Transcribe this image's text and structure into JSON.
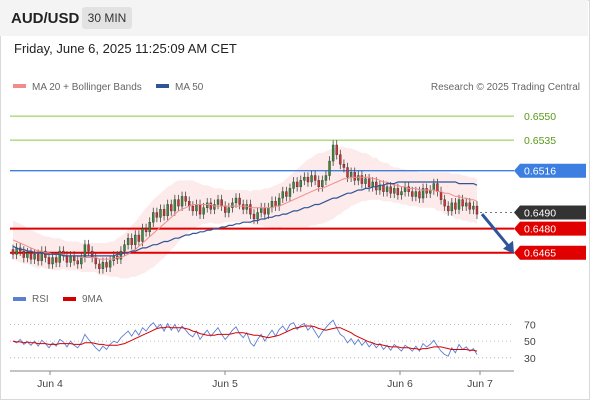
{
  "header": {
    "symbol": "AUD/USD",
    "timeframe": "30 MIN",
    "datetime": "Friday, June 6, 2025 11:25:09 AM CET"
  },
  "legend": {
    "bollinger": "MA 20 + Bollinger Bands",
    "ma50": "MA 50",
    "credit": "Research © 2025 Trading Central",
    "rsi": "RSI",
    "rsi_ma": "9MA"
  },
  "colors": {
    "bollinger": "#f28b8b",
    "ma50": "#2f5597",
    "green_level": "#8dc63f",
    "blue_level": "#3d7fe0",
    "red_level": "#e00000",
    "rsi": "#5b7fd4",
    "rsi_ma": "#d40000",
    "candle_up": "#3a8a3a",
    "candle_down": "#d33030"
  },
  "chart_data": [
    {
      "type": "candlestick",
      "ylim": [
        0.6453,
        0.656
      ],
      "x_ticks": [
        "Jun 4",
        "Jun 5",
        "Jun 6",
        "Jun 7"
      ],
      "levels": [
        {
          "value": 0.655,
          "label": "0.6550",
          "style": "green"
        },
        {
          "value": 0.6535,
          "label": "0.6535",
          "style": "green"
        },
        {
          "value": 0.6516,
          "label": "0.6516",
          "style": "blue"
        },
        {
          "value": 0.649,
          "label": "0.6490",
          "style": "dark"
        },
        {
          "value": 0.648,
          "label": "0.6480",
          "style": "red"
        },
        {
          "value": 0.6465,
          "label": "0.6465",
          "style": "red"
        }
      ],
      "close": [
        0.6464,
        0.6468,
        0.6466,
        0.6462,
        0.6465,
        0.6461,
        0.6464,
        0.646,
        0.6466,
        0.6462,
        0.6458,
        0.6462,
        0.6459,
        0.6466,
        0.6463,
        0.6459,
        0.6463,
        0.646,
        0.6458,
        0.6462,
        0.647,
        0.6466,
        0.6462,
        0.6458,
        0.6455,
        0.6459,
        0.6456,
        0.646,
        0.6463,
        0.6461,
        0.6466,
        0.647,
        0.6474,
        0.647,
        0.6476,
        0.6472,
        0.648,
        0.6478,
        0.6484,
        0.649,
        0.6487,
        0.6492,
        0.6488,
        0.6495,
        0.6491,
        0.6498,
        0.6494,
        0.65,
        0.6497,
        0.6494,
        0.6491,
        0.6495,
        0.6489,
        0.6493,
        0.6496,
        0.6492,
        0.6495,
        0.6498,
        0.6494,
        0.649,
        0.6493,
        0.6496,
        0.6499,
        0.6495,
        0.6492,
        0.6495,
        0.6489,
        0.6486,
        0.649,
        0.6493,
        0.6489,
        0.6493,
        0.6497,
        0.6494,
        0.6499,
        0.6503,
        0.65,
        0.6505,
        0.6509,
        0.6506,
        0.651,
        0.6512,
        0.6509,
        0.6513,
        0.651,
        0.6506,
        0.651,
        0.6513,
        0.6522,
        0.6532,
        0.6526,
        0.652,
        0.6518,
        0.6512,
        0.6515,
        0.651,
        0.6513,
        0.6508,
        0.6511,
        0.6506,
        0.6509,
        0.6504,
        0.6507,
        0.6503,
        0.6506,
        0.6502,
        0.6505,
        0.6501,
        0.6503,
        0.6506,
        0.6503,
        0.65,
        0.6503,
        0.6499,
        0.6505,
        0.6502,
        0.6504,
        0.6508,
        0.6503,
        0.6498,
        0.6494,
        0.6491,
        0.6496,
        0.6492,
        0.6498,
        0.6494,
        0.6496,
        0.6492,
        0.6494,
        0.6489
      ],
      "ma20": [
        0.6473,
        0.6472,
        0.6471,
        0.647,
        0.6469,
        0.6468,
        0.6467,
        0.6466,
        0.6466,
        0.6465,
        0.6465,
        0.6464,
        0.6464,
        0.6464,
        0.6464,
        0.6463,
        0.6463,
        0.6463,
        0.6463,
        0.6462,
        0.6462,
        0.6462,
        0.6462,
        0.6462,
        0.6461,
        0.6461,
        0.6461,
        0.6461,
        0.6461,
        0.6462,
        0.6462,
        0.6463,
        0.6464,
        0.6466,
        0.6467,
        0.6469,
        0.6471,
        0.6473,
        0.6475,
        0.6477,
        0.6479,
        0.6481,
        0.6483,
        0.6485,
        0.6487,
        0.6489,
        0.6491,
        0.6492,
        0.6493,
        0.6494,
        0.6495,
        0.6495,
        0.6495,
        0.6495,
        0.6495,
        0.6495,
        0.6494,
        0.6494,
        0.6494,
        0.6494,
        0.6494,
        0.6494,
        0.6494,
        0.6494,
        0.6494,
        0.6494,
        0.6493,
        0.6493,
        0.6493,
        0.6493,
        0.6493,
        0.6493,
        0.6493,
        0.6494,
        0.6494,
        0.6495,
        0.6496,
        0.6497,
        0.6498,
        0.6499,
        0.65,
        0.6501,
        0.6502,
        0.6503,
        0.6504,
        0.6505,
        0.6505,
        0.6506,
        0.6507,
        0.6508,
        0.6509,
        0.651,
        0.6511,
        0.6511,
        0.6512,
        0.6512,
        0.6512,
        0.6512,
        0.6512,
        0.6512,
        0.6511,
        0.6511,
        0.651,
        0.6509,
        0.6509,
        0.6508,
        0.6507,
        0.6507,
        0.6506,
        0.6506,
        0.6505,
        0.6505,
        0.6505,
        0.6504,
        0.6504,
        0.6504,
        0.6504,
        0.6504,
        0.6503,
        0.6503,
        0.6502,
        0.6502,
        0.6501,
        0.65,
        0.65,
        0.6499,
        0.6499,
        0.6498,
        0.6498,
        0.6497
      ],
      "ma50": [
        0.6469,
        0.6468,
        0.6467,
        0.6467,
        0.6466,
        0.6466,
        0.6465,
        0.6465,
        0.6465,
        0.6464,
        0.6464,
        0.6464,
        0.6464,
        0.6464,
        0.6463,
        0.6463,
        0.6463,
        0.6463,
        0.6463,
        0.6463,
        0.6463,
        0.6463,
        0.6463,
        0.6463,
        0.6463,
        0.6463,
        0.6463,
        0.6463,
        0.6463,
        0.6464,
        0.6464,
        0.6465,
        0.6465,
        0.6466,
        0.6466,
        0.6467,
        0.6468,
        0.6468,
        0.6469,
        0.647,
        0.647,
        0.6471,
        0.6472,
        0.6472,
        0.6473,
        0.6474,
        0.6474,
        0.6475,
        0.6476,
        0.6476,
        0.6477,
        0.6477,
        0.6478,
        0.6478,
        0.6479,
        0.6479,
        0.648,
        0.648,
        0.6481,
        0.6481,
        0.6482,
        0.6482,
        0.6483,
        0.6483,
        0.6484,
        0.6484,
        0.6484,
        0.6485,
        0.6485,
        0.6486,
        0.6486,
        0.6487,
        0.6487,
        0.6488,
        0.6488,
        0.6489,
        0.6489,
        0.649,
        0.6491,
        0.6491,
        0.6492,
        0.6493,
        0.6493,
        0.6494,
        0.6495,
        0.6495,
        0.6496,
        0.6497,
        0.6498,
        0.6499,
        0.6499,
        0.65,
        0.6501,
        0.6502,
        0.6502,
        0.6503,
        0.6504,
        0.6504,
        0.6505,
        0.6505,
        0.6506,
        0.6506,
        0.6507,
        0.6507,
        0.6508,
        0.6508,
        0.6508,
        0.6509,
        0.6509,
        0.6509,
        0.6509,
        0.6509,
        0.6509,
        0.6509,
        0.6509,
        0.6509,
        0.6509,
        0.6509,
        0.6509,
        0.6509,
        0.6509,
        0.6509,
        0.6509,
        0.6509,
        0.6508,
        0.6508,
        0.6508,
        0.6508,
        0.6508,
        0.6507
      ],
      "bb_width": [
        0.0012,
        0.0012,
        0.0012,
        0.0012,
        0.0011,
        0.0011,
        0.0011,
        0.0011,
        0.001,
        0.001,
        0.001,
        0.001,
        0.001,
        0.001,
        0.0009,
        0.0009,
        0.0009,
        0.0009,
        0.0009,
        0.0009,
        0.0009,
        0.0009,
        0.0009,
        0.0009,
        0.001,
        0.001,
        0.001,
        0.0011,
        0.0011,
        0.0012,
        0.0013,
        0.0014,
        0.0015,
        0.0016,
        0.0017,
        0.0018,
        0.0019,
        0.002,
        0.002,
        0.0021,
        0.0021,
        0.0021,
        0.0021,
        0.0021,
        0.002,
        0.002,
        0.0019,
        0.0018,
        0.0017,
        0.0016,
        0.0015,
        0.0014,
        0.0013,
        0.0012,
        0.0012,
        0.0011,
        0.0011,
        0.0011,
        0.0011,
        0.001,
        0.001,
        0.001,
        0.001,
        0.001,
        0.001,
        0.001,
        0.001,
        0.0011,
        0.0011,
        0.0011,
        0.0012,
        0.0012,
        0.0013,
        0.0013,
        0.0014,
        0.0014,
        0.0015,
        0.0016,
        0.0017,
        0.0018,
        0.0019,
        0.002,
        0.0021,
        0.0021,
        0.0022,
        0.0022,
        0.0022,
        0.0022,
        0.0022,
        0.0022,
        0.0021,
        0.0021,
        0.002,
        0.0019,
        0.0018,
        0.0017,
        0.0016,
        0.0015,
        0.0015,
        0.0014,
        0.0013,
        0.0013,
        0.0012,
        0.0012,
        0.0012,
        0.0011,
        0.0011,
        0.0011,
        0.0011,
        0.0011,
        0.0011,
        0.0011,
        0.0011,
        0.0011,
        0.0011,
        0.0011,
        0.0011,
        0.0011,
        0.0012,
        0.0012,
        0.0013,
        0.0013,
        0.0013,
        0.0014,
        0.0014,
        0.0014,
        0.0014,
        0.0014,
        0.0014,
        0.0014
      ],
      "projection": {
        "from": 0.6489,
        "to": 0.6465
      }
    },
    {
      "type": "line",
      "ylim": [
        25,
        80
      ],
      "y_ticks": [
        70,
        50,
        30
      ],
      "series": [
        {
          "name": "RSI",
          "values": [
            50,
            48,
            52,
            46,
            49,
            45,
            50,
            44,
            51,
            47,
            42,
            48,
            44,
            52,
            49,
            43,
            50,
            45,
            42,
            48,
            58,
            52,
            47,
            42,
            38,
            44,
            40,
            46,
            50,
            48,
            54,
            58,
            62,
            56,
            63,
            57,
            66,
            62,
            68,
            72,
            66,
            70,
            62,
            71,
            63,
            70,
            61,
            68,
            63,
            58,
            55,
            62,
            52,
            58,
            63,
            56,
            61,
            66,
            58,
            52,
            57,
            63,
            67,
            59,
            54,
            60,
            48,
            44,
            52,
            58,
            50,
            57,
            63,
            56,
            64,
            68,
            62,
            70,
            72,
            64,
            69,
            71,
            63,
            68,
            61,
            54,
            61,
            66,
            71,
            75,
            66,
            58,
            55,
            48,
            53,
            46,
            52,
            45,
            50,
            43,
            48,
            42,
            47,
            40,
            45,
            39,
            46,
            42,
            38,
            45,
            42,
            38,
            44,
            38,
            47,
            43,
            46,
            51,
            44,
            38,
            34,
            32,
            42,
            36,
            46,
            40,
            43,
            38,
            41,
            34
          ]
        },
        {
          "name": "9MA",
          "values": [
            50,
            49,
            49,
            48,
            49,
            48,
            48,
            47,
            47,
            47,
            46,
            46,
            46,
            47,
            47,
            47,
            47,
            46,
            46,
            46,
            48,
            48,
            48,
            47,
            46,
            46,
            45,
            45,
            45,
            45,
            46,
            47,
            49,
            51,
            53,
            55,
            57,
            59,
            61,
            63,
            65,
            66,
            66,
            67,
            66,
            66,
            66,
            66,
            65,
            64,
            62,
            61,
            59,
            58,
            57,
            57,
            57,
            58,
            58,
            58,
            58,
            59,
            60,
            60,
            60,
            59,
            58,
            57,
            57,
            56,
            55,
            54,
            55,
            56,
            57,
            59,
            61,
            63,
            65,
            66,
            67,
            68,
            68,
            68,
            67,
            65,
            64,
            63,
            64,
            65,
            66,
            66,
            64,
            62,
            60,
            57,
            55,
            53,
            51,
            49,
            48,
            46,
            46,
            45,
            44,
            43,
            43,
            43,
            42,
            42,
            42,
            41,
            41,
            40,
            41,
            41,
            42,
            43,
            43,
            43,
            42,
            41,
            40,
            40,
            40,
            40,
            40,
            39,
            39,
            38
          ]
        }
      ]
    }
  ]
}
